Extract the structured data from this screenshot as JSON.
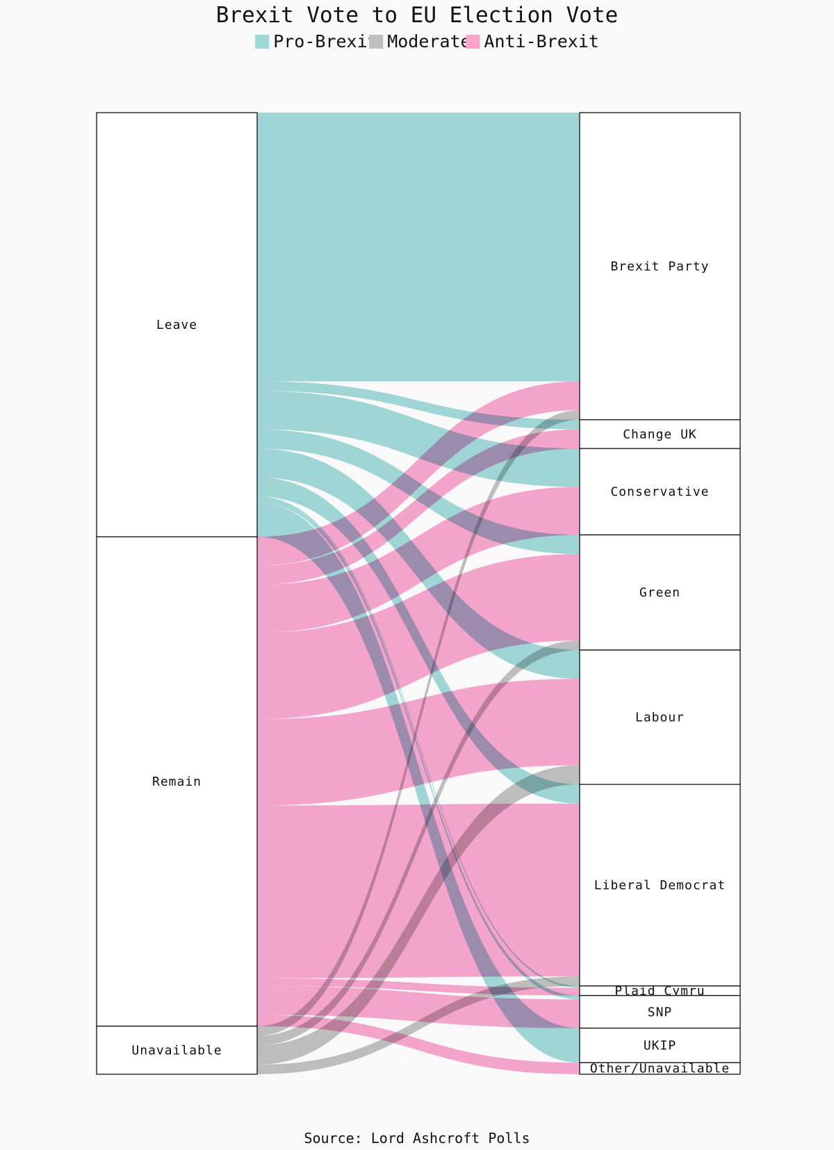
{
  "chart_data": {
    "type": "sankey",
    "title": "Brexit Vote to EU Election Vote",
    "source": "Source: Lord Ashcroft Polls",
    "legend": [
      {
        "name": "Pro-Brexit",
        "color": "#9ed8d8"
      },
      {
        "name": "Moderate",
        "color": "#bfbfbf"
      },
      {
        "name": "Anti-Brexit",
        "color": "#f9a3cc"
      }
    ],
    "left_nodes": [
      "Leave",
      "Remain",
      "Unavailable"
    ],
    "right_nodes": [
      "Brexit Party",
      "Change UK",
      "Conservative",
      "Green",
      "Labour",
      "Liberal Democrat",
      "Plaid Cymru",
      "SNP",
      "UKIP",
      "Other/Unavailable"
    ],
    "flows": [
      {
        "source": "Leave",
        "target": "Brexit Party",
        "value": 28.0,
        "group": "Pro-Brexit"
      },
      {
        "source": "Leave",
        "target": "Change UK",
        "value": 1.0,
        "group": "Pro-Brexit"
      },
      {
        "source": "Leave",
        "target": "Conservative",
        "value": 4.0,
        "group": "Pro-Brexit"
      },
      {
        "source": "Leave",
        "target": "Green",
        "value": 2.0,
        "group": "Pro-Brexit"
      },
      {
        "source": "Leave",
        "target": "Labour",
        "value": 3.0,
        "group": "Pro-Brexit"
      },
      {
        "source": "Leave",
        "target": "Liberal Democrat",
        "value": 2.0,
        "group": "Pro-Brexit"
      },
      {
        "source": "Leave",
        "target": "Plaid Cymru",
        "value": 0.2,
        "group": "Pro-Brexit"
      },
      {
        "source": "Leave",
        "target": "SNP",
        "value": 0.4,
        "group": "Pro-Brexit"
      },
      {
        "source": "Leave",
        "target": "UKIP",
        "value": 3.6,
        "group": "Pro-Brexit"
      },
      {
        "source": "Remain",
        "target": "Brexit Party",
        "value": 3.0,
        "group": "Anti-Brexit"
      },
      {
        "source": "Remain",
        "target": "Change UK",
        "value": 2.0,
        "group": "Anti-Brexit"
      },
      {
        "source": "Remain",
        "target": "Conservative",
        "value": 5.0,
        "group": "Anti-Brexit"
      },
      {
        "source": "Remain",
        "target": "Green",
        "value": 9.0,
        "group": "Anti-Brexit"
      },
      {
        "source": "Remain",
        "target": "Labour",
        "value": 9.0,
        "group": "Anti-Brexit"
      },
      {
        "source": "Remain",
        "target": "Liberal Democrat",
        "value": 18.0,
        "group": "Anti-Brexit"
      },
      {
        "source": "Remain",
        "target": "Plaid Cymru",
        "value": 0.8,
        "group": "Anti-Brexit"
      },
      {
        "source": "Remain",
        "target": "SNP",
        "value": 3.0,
        "group": "Anti-Brexit"
      },
      {
        "source": "Remain",
        "target": "Other/Unavailable",
        "value": 1.2,
        "group": "Anti-Brexit"
      },
      {
        "source": "Unavailable",
        "target": "Brexit Party",
        "value": 1.0,
        "group": "Moderate"
      },
      {
        "source": "Unavailable",
        "target": "Green",
        "value": 1.0,
        "group": "Moderate"
      },
      {
        "source": "Unavailable",
        "target": "Labour",
        "value": 2.0,
        "group": "Moderate"
      },
      {
        "source": "Unavailable",
        "target": "Liberal Democrat",
        "value": 1.0,
        "group": "Moderate"
      }
    ]
  }
}
